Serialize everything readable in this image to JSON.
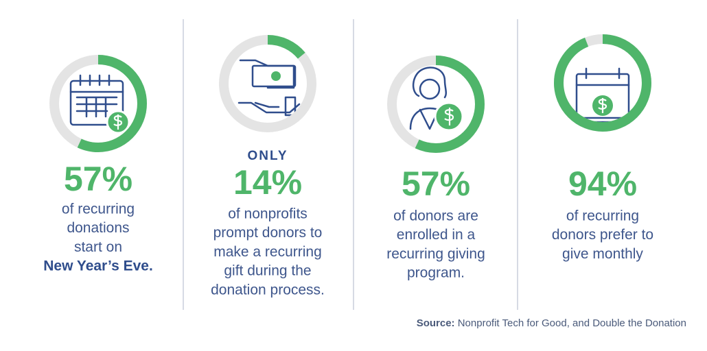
{
  "stats": [
    {
      "value": 57,
      "value_label": "57%",
      "lines": [
        "of recurring",
        "donations",
        "start on"
      ],
      "highlight": "New Year’s Eve."
    },
    {
      "prefix": "ONLY",
      "value": 14,
      "value_label": "14%",
      "lines": [
        "of nonprofits",
        "prompt donors to",
        "make a recurring",
        "gift during the",
        "donation process."
      ]
    },
    {
      "value": 57,
      "value_label": "57%",
      "lines": [
        "of donors are",
        "enrolled in a",
        "recurring giving",
        "program."
      ]
    },
    {
      "value": 94,
      "value_label": "94%",
      "lines": [
        "of recurring",
        "donors prefer to",
        "give monthly"
      ]
    }
  ],
  "source": {
    "label": "Source:",
    "text": "Nonprofit Tech for Good, and Double the Donation"
  }
}
